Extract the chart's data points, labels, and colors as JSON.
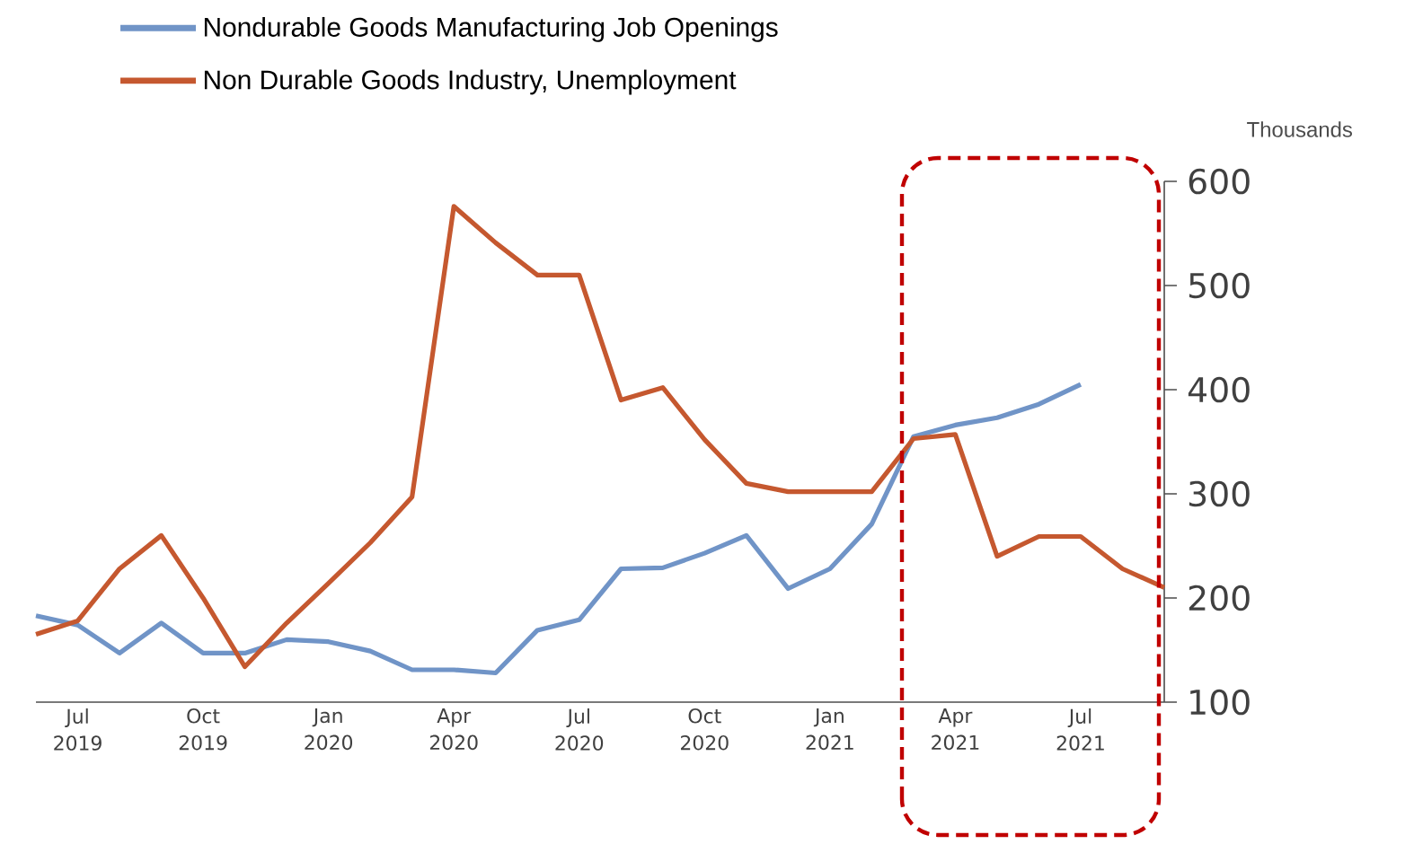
{
  "chart_data": {
    "type": "line",
    "ylabel": "Thousands",
    "x": [
      "2019-06",
      "2019-07",
      "2019-08",
      "2019-09",
      "2019-10",
      "2019-11",
      "2019-12",
      "2020-01",
      "2020-02",
      "2020-03",
      "2020-04",
      "2020-05",
      "2020-06",
      "2020-07",
      "2020-08",
      "2020-09",
      "2020-10",
      "2020-11",
      "2020-12",
      "2021-01",
      "2021-02",
      "2021-03",
      "2021-04",
      "2021-05",
      "2021-06",
      "2021-07",
      "2021-08",
      "2021-09"
    ],
    "series": [
      {
        "name": "Nondurable Goods Manufacturing Job Openings",
        "color": "#7094c7",
        "values": [
          183,
          174,
          147,
          176,
          147,
          147,
          160,
          158,
          149,
          131,
          131,
          128,
          169,
          179,
          228,
          229,
          243,
          260,
          209,
          228,
          271,
          355,
          366,
          373,
          386,
          405,
          null,
          null
        ]
      },
      {
        "name": "Non Durable Goods Industry, Unemployment",
        "color": "#c5582f",
        "values": [
          165,
          178,
          228,
          260,
          200,
          134,
          176,
          214,
          253,
          297,
          576,
          541,
          510,
          510,
          390,
          402,
          352,
          310,
          302,
          302,
          302,
          353,
          357,
          240,
          259,
          259,
          228,
          210
        ]
      }
    ],
    "xlim": [
      "2019-06",
      "2021-09"
    ],
    "xticks": [
      {
        "value": "2019-07",
        "label": "Jul 2019"
      },
      {
        "value": "2019-10",
        "label": "Oct 2019"
      },
      {
        "value": "2020-01",
        "label": "Jan 2020"
      },
      {
        "value": "2020-04",
        "label": "Apr 2020"
      },
      {
        "value": "2020-07",
        "label": "Jul 2020"
      },
      {
        "value": "2020-10",
        "label": "Oct 2020"
      },
      {
        "value": "2021-01",
        "label": "Jan 2021"
      },
      {
        "value": "2021-04",
        "label": "Apr 2021"
      },
      {
        "value": "2021-07",
        "label": "Jul 2021"
      }
    ],
    "ylim": [
      100,
      600
    ],
    "yticks": [
      100,
      200,
      300,
      400,
      500,
      600
    ],
    "legend": "top left",
    "grid": false,
    "line_style": "solid"
  }
}
